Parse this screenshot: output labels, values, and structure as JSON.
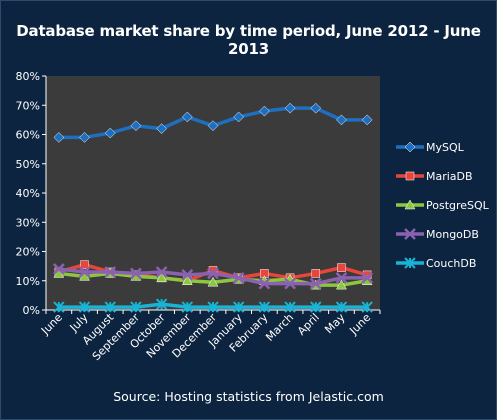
{
  "chart_data": {
    "type": "line",
    "title": "Database market share by time period, June 2012 - June 2013",
    "source": "Source: Hosting statistics from Jelastic.com",
    "categories": [
      "June",
      "July",
      "August",
      "September",
      "October",
      "November",
      "December",
      "January",
      "February",
      "March",
      "April",
      "May",
      "June"
    ],
    "y_ticks": [
      "0%",
      "10%",
      "20%",
      "30%",
      "40%",
      "50%",
      "60%",
      "70%",
      "80%"
    ],
    "ylim": [
      0,
      80
    ],
    "grid": false,
    "legend_position": "right",
    "series": [
      {
        "name": "MySQL",
        "color": "#1f6fc0",
        "marker": "diamond",
        "values": [
          59,
          59,
          60.5,
          63,
          62,
          66,
          63,
          66,
          68,
          69,
          69,
          65,
          65
        ]
      },
      {
        "name": "MariaDB",
        "color": "#e8453c",
        "marker": "square",
        "values": [
          13,
          15.5,
          13,
          12,
          11,
          10,
          13.5,
          11,
          12.5,
          11,
          12.5,
          14.5,
          12
        ]
      },
      {
        "name": "PostgreSQL",
        "color": "#8dc63f",
        "marker": "triangle",
        "values": [
          12.5,
          11.5,
          12.5,
          11.5,
          11,
          10,
          9.5,
          10.5,
          10,
          10.5,
          8.5,
          8.5,
          10
        ]
      },
      {
        "name": "MongoDB",
        "color": "#8a62b0",
        "marker": "x",
        "values": [
          14,
          13,
          13,
          12.5,
          13,
          12,
          12.5,
          11,
          9,
          9,
          9,
          11,
          11
        ]
      },
      {
        "name": "CouchDB",
        "color": "#19b3d6",
        "marker": "star",
        "values": [
          1,
          1,
          1,
          1,
          2,
          1,
          1,
          1,
          1,
          1,
          1,
          1,
          1
        ]
      }
    ]
  }
}
